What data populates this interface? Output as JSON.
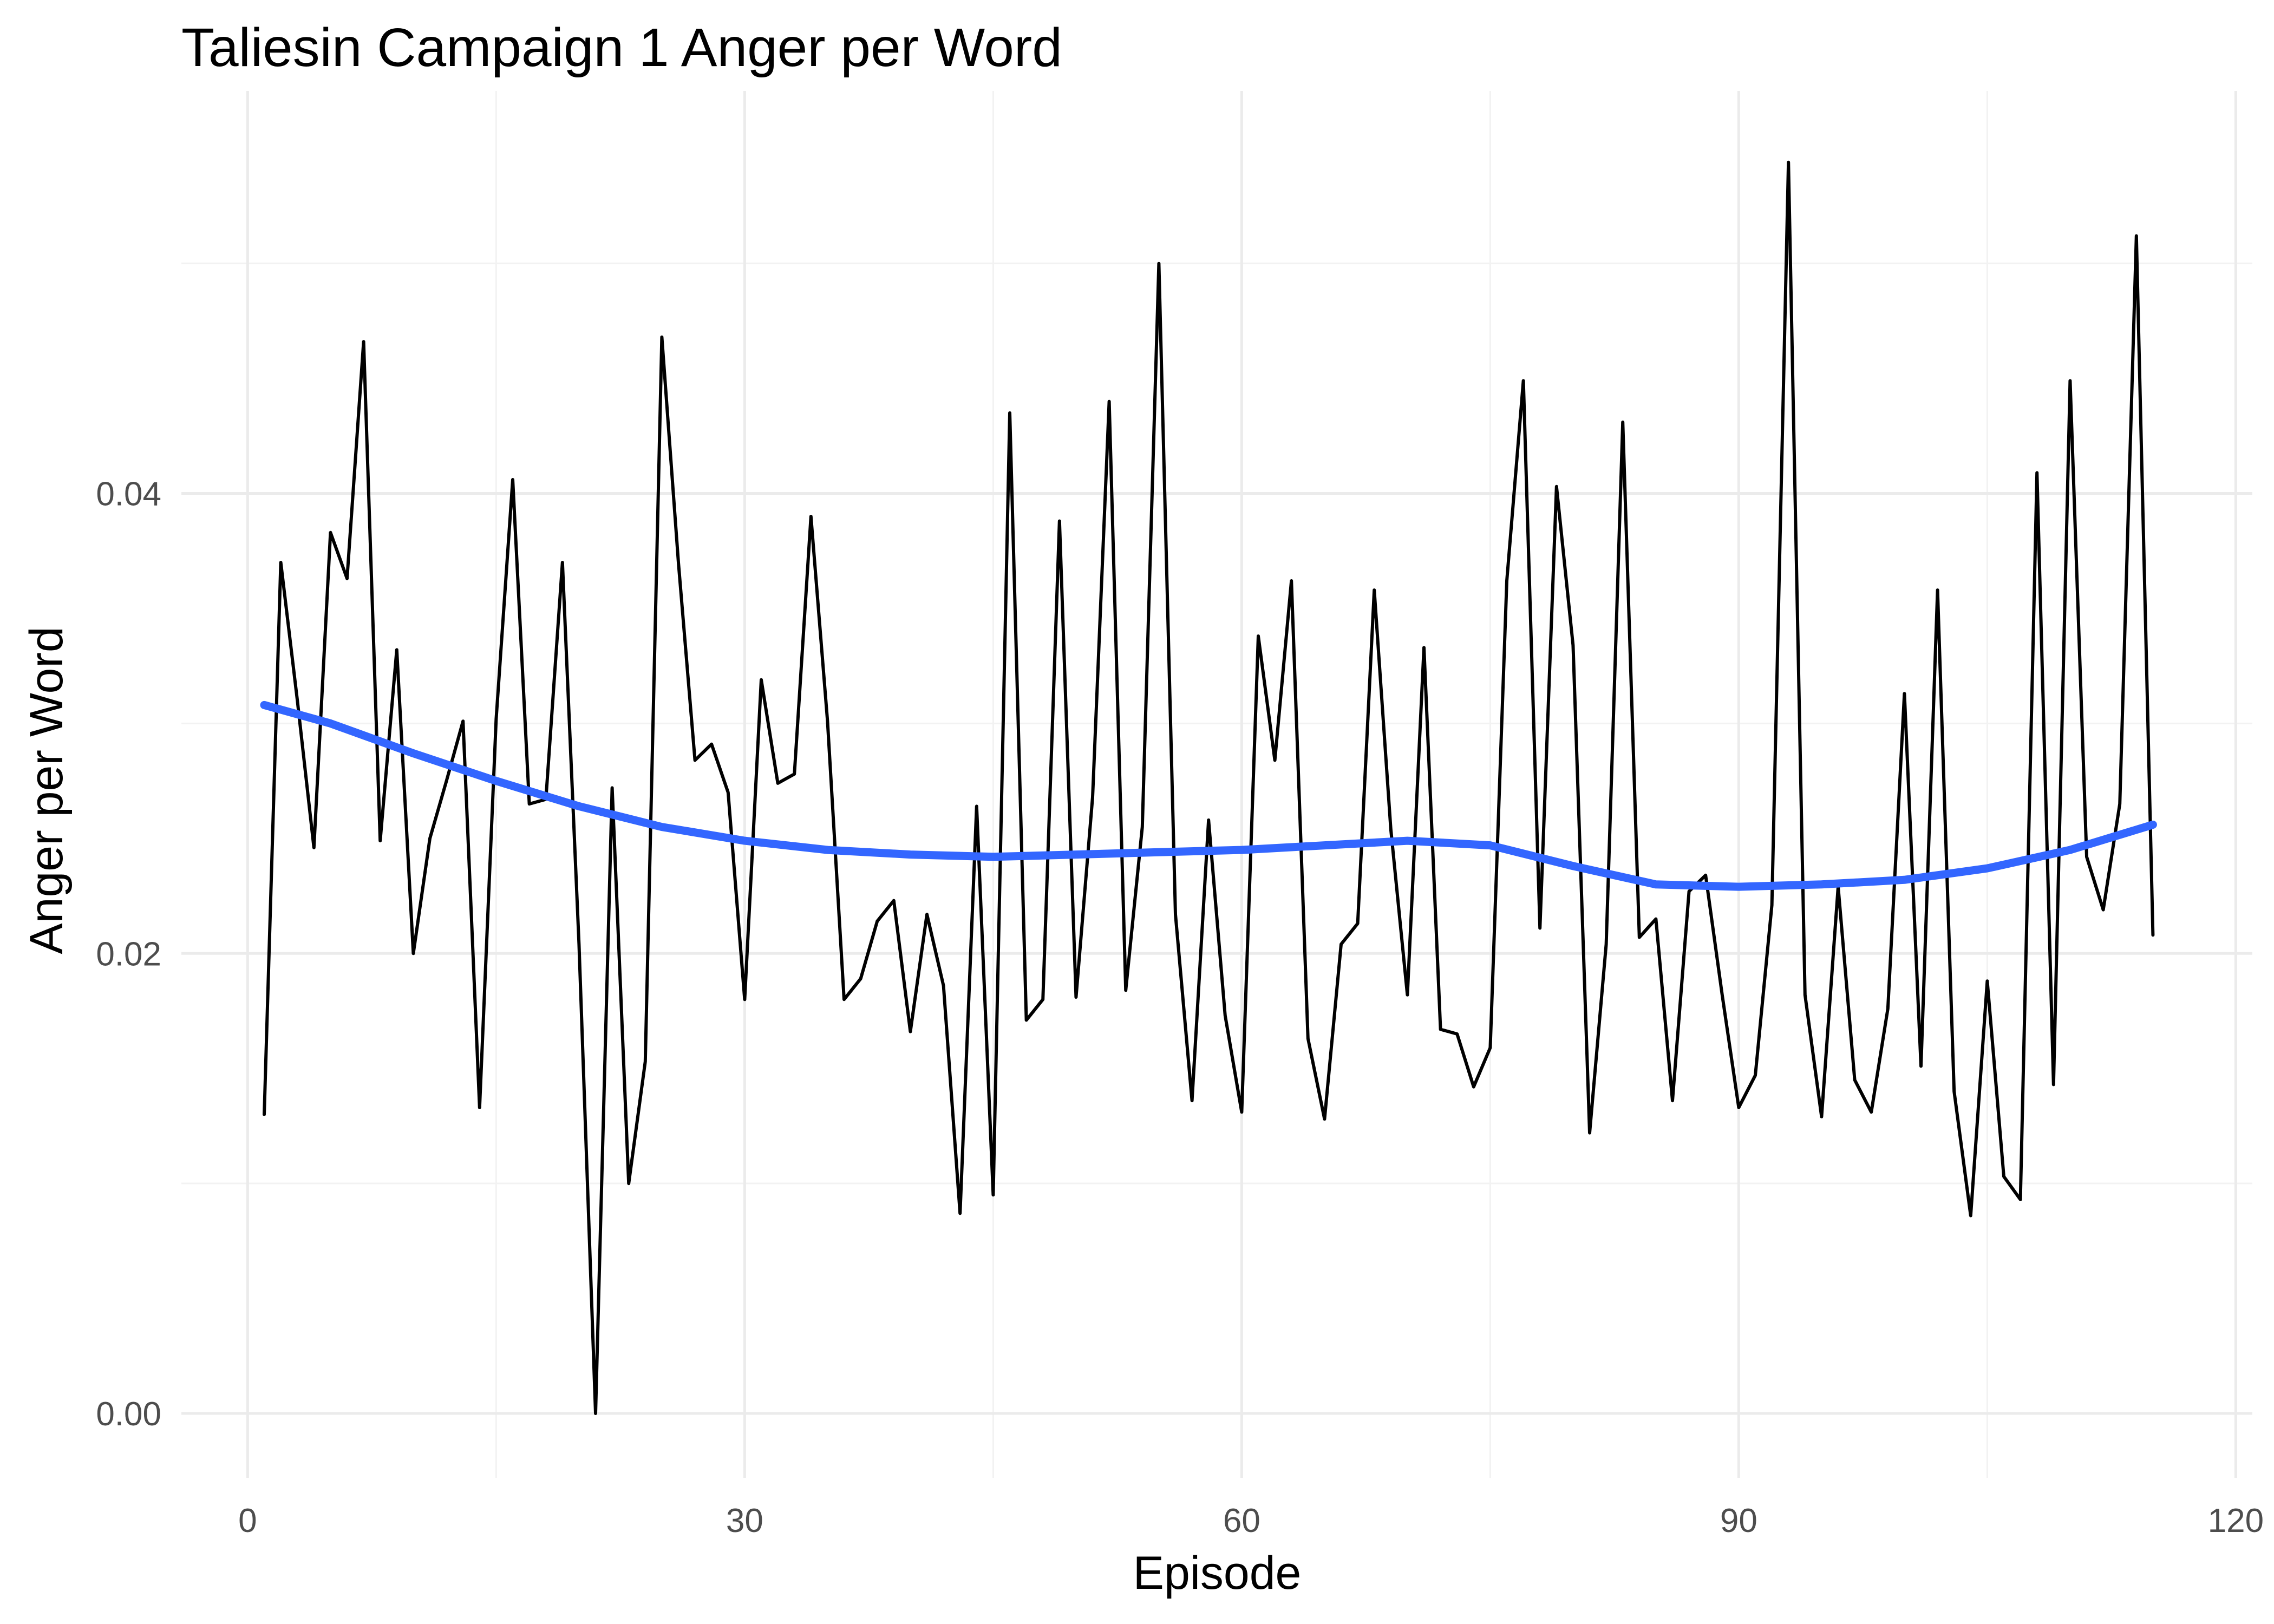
{
  "chart_data": {
    "type": "line",
    "title": "Taliesin Campaign 1 Anger per Word",
    "xlabel": "Episode",
    "ylabel": "Anger per Word",
    "xlim": [
      -4,
      121
    ],
    "ylim": [
      -0.0028,
      0.0575
    ],
    "x_ticks": [
      0,
      30,
      60,
      90,
      120
    ],
    "x_tick_labels": [
      "0",
      "30",
      "60",
      "90",
      "120"
    ],
    "y_ticks": [
      0.0,
      0.02,
      0.04
    ],
    "y_tick_labels": [
      "0.00",
      "0.02",
      "0.04"
    ],
    "grid": true,
    "legend": "none",
    "series": [
      {
        "color": "#000000",
        "x": [
          1,
          2,
          3,
          4,
          5,
          6,
          7,
          8,
          9,
          10,
          11,
          12,
          13,
          14,
          15,
          16,
          17,
          18,
          19,
          20,
          21,
          22,
          23,
          24,
          25,
          26,
          27,
          28,
          29,
          30,
          31,
          32,
          33,
          34,
          35,
          36,
          37,
          38,
          39,
          40,
          41,
          42,
          43,
          44,
          45,
          46,
          47,
          48,
          49,
          50,
          51,
          52,
          53,
          54,
          55,
          56,
          57,
          58,
          59,
          60,
          61,
          62,
          63,
          64,
          65,
          66,
          67,
          68,
          69,
          70,
          71,
          72,
          73,
          74,
          75,
          76,
          77,
          78,
          79,
          80,
          81,
          82,
          83,
          84,
          85,
          86,
          87,
          88,
          89,
          90,
          91,
          92,
          93,
          94,
          95,
          96,
          97,
          98,
          99,
          100,
          101,
          102,
          103,
          104,
          105,
          106,
          107,
          108,
          109,
          110,
          111,
          112,
          113,
          114,
          115
        ],
        "values": [
          0.013,
          0.037,
          0.031,
          0.0246,
          0.0383,
          0.0363,
          0.0466,
          0.0249,
          0.0332,
          0.02,
          0.025,
          0.0275,
          0.0301,
          0.0133,
          0.0302,
          0.0406,
          0.0265,
          0.0267,
          0.037,
          0.0204,
          0.0,
          0.0272,
          0.01,
          0.0153,
          0.0468,
          0.037,
          0.0284,
          0.0291,
          0.027,
          0.018,
          0.0319,
          0.0274,
          0.0278,
          0.039,
          0.0301,
          0.018,
          0.0189,
          0.0214,
          0.0223,
          0.0166,
          0.0217,
          0.0186,
          0.0087,
          0.0264,
          0.0095,
          0.0435,
          0.0171,
          0.018,
          0.0388,
          0.0181,
          0.0268,
          0.044,
          0.0184,
          0.0255,
          0.05,
          0.0217,
          0.0136,
          0.0258,
          0.0173,
          0.0131,
          0.0338,
          0.0284,
          0.0362,
          0.0163,
          0.0128,
          0.0204,
          0.0213,
          0.0358,
          0.0254,
          0.0182,
          0.0333,
          0.0167,
          0.0165,
          0.0142,
          0.0159,
          0.0362,
          0.0449,
          0.0211,
          0.0403,
          0.0334,
          0.0122,
          0.0204,
          0.0431,
          0.0207,
          0.0215,
          0.0136,
          0.0227,
          0.0234,
          0.0182,
          0.0133,
          0.0147,
          0.0221,
          0.0544,
          0.0182,
          0.0129,
          0.0229,
          0.0145,
          0.0131,
          0.0176,
          0.0313,
          0.0151,
          0.0358,
          0.014,
          0.0086,
          0.0188,
          0.0103,
          0.0093,
          0.0409,
          0.0143,
          0.0449,
          0.0242,
          0.0219,
          0.0265,
          0.0512,
          0.0208
        ]
      },
      {
        "color": "#3366ff",
        "x": [
          1,
          5,
          10,
          15,
          20,
          25,
          30,
          35,
          40,
          45,
          50,
          55,
          60,
          65,
          70,
          75,
          80,
          85,
          90,
          95,
          100,
          105,
          110,
          115
        ],
        "values": [
          0.0308,
          0.03,
          0.0287,
          0.0275,
          0.0264,
          0.0255,
          0.0249,
          0.0245,
          0.0243,
          0.0242,
          0.0243,
          0.0244,
          0.0245,
          0.0247,
          0.0249,
          0.0247,
          0.0238,
          0.023,
          0.0229,
          0.023,
          0.0232,
          0.0237,
          0.0245,
          0.0256
        ]
      }
    ]
  }
}
